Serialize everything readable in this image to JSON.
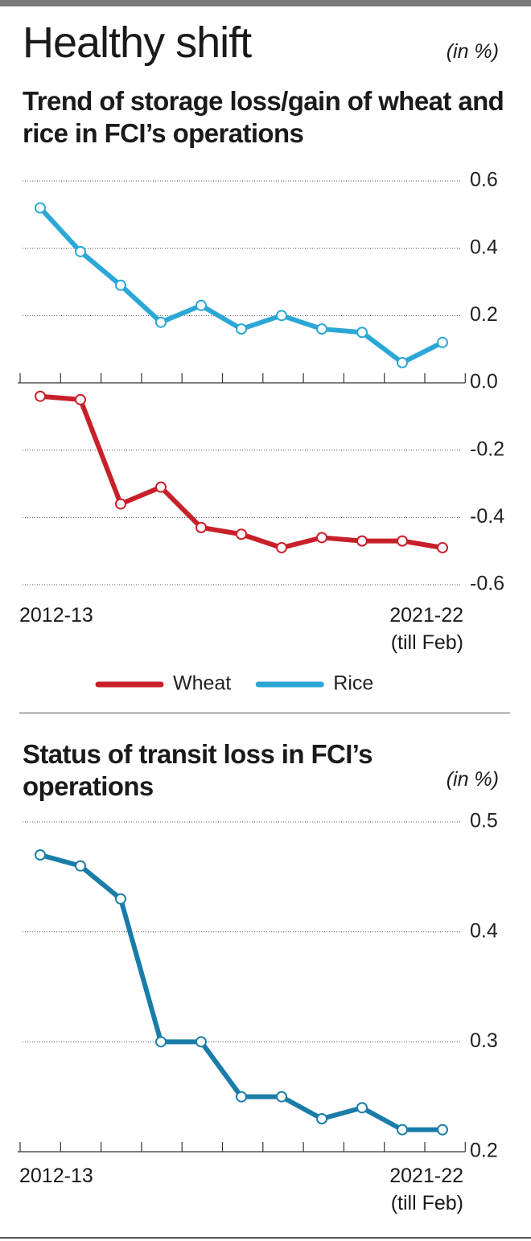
{
  "title": "Healthy shift",
  "chart_data": [
    {
      "type": "line",
      "title": "Trend of storage loss/gain of wheat and rice in FCI’s operations",
      "unit": "(in %)",
      "categories": [
        "2012-13",
        null,
        null,
        null,
        null,
        null,
        null,
        null,
        null,
        null,
        "2021-22 (till Feb)"
      ],
      "series": [
        {
          "name": "Wheat",
          "color": "#c8202a",
          "values": [
            -0.04,
            -0.05,
            -0.36,
            -0.31,
            -0.43,
            -0.45,
            -0.49,
            -0.46,
            -0.47,
            -0.47,
            -0.49
          ]
        },
        {
          "name": "Rice",
          "color": "#2ba7d6",
          "values": [
            0.52,
            0.39,
            0.29,
            0.18,
            0.23,
            0.16,
            0.2,
            0.16,
            0.15,
            0.06,
            0.12
          ]
        }
      ],
      "ylim": [
        -0.6,
        0.6
      ],
      "yticks": [
        0.6,
        0.4,
        0.2,
        {
          "value": 0,
          "label": "0.0"
        },
        -0.2,
        -0.4,
        -0.6
      ],
      "grid": true,
      "legend": "bottom"
    },
    {
      "type": "line",
      "title": "Status of transit loss in FCI’s operations",
      "unit": "(in %)",
      "categories": [
        "2012-13",
        null,
        null,
        null,
        null,
        null,
        null,
        null,
        null,
        null,
        "2021-22 (till Feb)"
      ],
      "series": [
        {
          "color": "#1a7ca8",
          "values": [
            0.47,
            0.46,
            0.43,
            0.3,
            0.3,
            0.25,
            0.25,
            0.23,
            0.24,
            0.22,
            0.22
          ]
        }
      ],
      "ylim": [
        0.2,
        0.5
      ],
      "yticks": [
        0.5,
        0.4,
        0.3,
        0.2
      ],
      "grid": true
    }
  ]
}
